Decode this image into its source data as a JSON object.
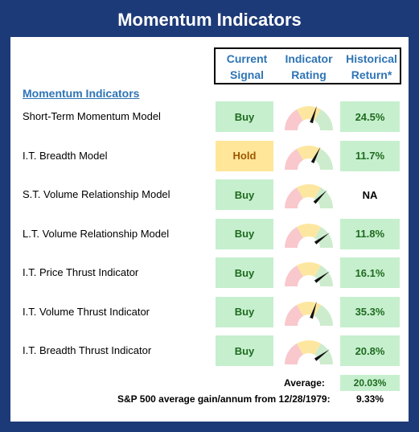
{
  "title": "Momentum Indicators",
  "headers": {
    "current_signal": [
      "Current",
      "Signal"
    ],
    "indicator_rating": [
      "Indicator",
      "Rating"
    ],
    "historical_return": [
      "Historical",
      "Return*"
    ]
  },
  "section_title": "Momentum Indicators",
  "rows": [
    {
      "label": "Short-Term Momentum Model",
      "signal": "Buy",
      "signal_type": "buy",
      "gauge_level": 0.6,
      "return": "24.5%",
      "return_filled": true
    },
    {
      "label": "I.T. Breadth Model",
      "signal": "Hold",
      "signal_type": "hold",
      "gauge_level": 0.65,
      "return": "11.7%",
      "return_filled": true
    },
    {
      "label": "S.T. Volume Relationship Model",
      "signal": "Buy",
      "signal_type": "buy",
      "gauge_level": 0.75,
      "return": "NA",
      "return_filled": false
    },
    {
      "label": "L.T. Volume Relationship Model",
      "signal": "Buy",
      "signal_type": "buy",
      "gauge_level": 0.8,
      "return": "11.8%",
      "return_filled": true
    },
    {
      "label": "I.T. Price Thrust Indicator",
      "signal": "Buy",
      "signal_type": "buy",
      "gauge_level": 0.8,
      "return": "16.1%",
      "return_filled": true
    },
    {
      "label": "I.T. Volume Thrust Indicator",
      "signal": "Buy",
      "signal_type": "buy",
      "gauge_level": 0.6,
      "return": "35.3%",
      "return_filled": true
    },
    {
      "label": "I.T. Breadth Thrust Indicator",
      "signal": "Buy",
      "signal_type": "buy",
      "gauge_level": 0.8,
      "return": "20.8%",
      "return_filled": true
    }
  ],
  "average": {
    "label": "Average:",
    "value": "20.03%"
  },
  "sp500": {
    "label": "S&P 500 average gain/annum from 12/28/1979:",
    "value": "9.33%"
  },
  "colors": {
    "frame": "#1d3a78",
    "accent": "#2e74b5",
    "buy_bg": "#c6efce",
    "buy_text": "#1e6b1e",
    "hold_bg": "#ffe699",
    "hold_text": "#9c5700",
    "gauge_red": "#f8c8cc",
    "gauge_yellow": "#fde7a0",
    "gauge_green": "#cdeccd"
  }
}
